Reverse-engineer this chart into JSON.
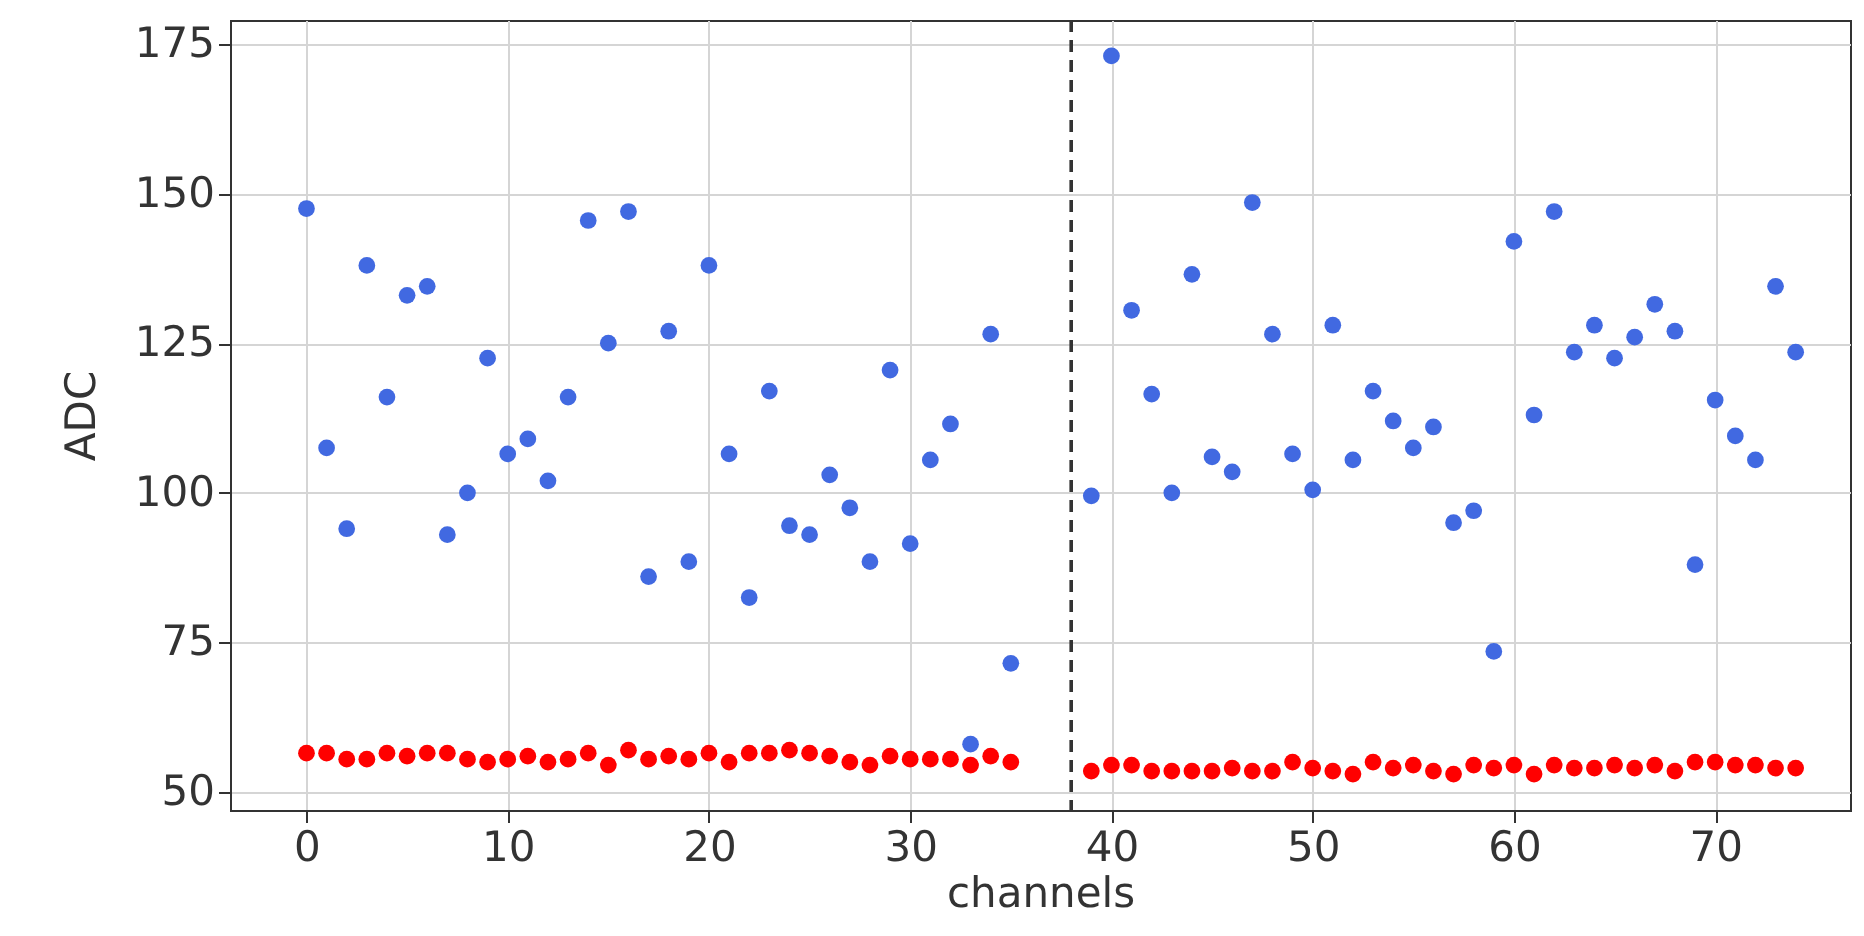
{
  "chart_data": {
    "type": "scatter",
    "xlabel": "channels",
    "ylabel": "ADC",
    "xlim": [
      -3.8,
      76.7
    ],
    "xticks": [
      0,
      10,
      20,
      30,
      40,
      50,
      60,
      70
    ],
    "ylim": [
      47,
      179
    ],
    "yticks": [
      50,
      75,
      100,
      125,
      150,
      175
    ],
    "grid": true,
    "marker": "circle",
    "ref_lines": [
      {
        "axis": "x",
        "value": 38,
        "line_style": "dashed",
        "color": "#333333"
      }
    ],
    "series": [
      {
        "color": "#4169e1",
        "x": [
          0,
          1,
          2,
          3,
          4,
          5,
          6,
          7,
          8,
          9,
          10,
          11,
          12,
          13,
          14,
          15,
          16,
          17,
          18,
          19,
          20,
          21,
          22,
          23,
          24,
          25,
          26,
          27,
          28,
          29,
          30,
          31,
          32,
          33,
          34,
          35,
          39,
          40,
          41,
          42,
          43,
          44,
          45,
          46,
          47,
          48,
          49,
          50,
          51,
          52,
          53,
          54,
          55,
          56,
          57,
          58,
          59,
          60,
          61,
          62,
          63,
          64,
          65,
          66,
          67,
          68,
          69,
          70,
          71,
          72,
          73,
          74
        ],
        "values": [
          147.5,
          107.5,
          94,
          138,
          116,
          133,
          134.5,
          93,
          100,
          122.5,
          106.5,
          109,
          102,
          116,
          145.5,
          125,
          147,
          86,
          127,
          88.5,
          138,
          106.5,
          82.5,
          117,
          94.5,
          93,
          103,
          97.5,
          88.5,
          120.5,
          91.5,
          105.5,
          111.5,
          58,
          126.5,
          71.5,
          99.5,
          173,
          130.5,
          116.5,
          100,
          136.5,
          106,
          103.5,
          148.5,
          126.5,
          106.5,
          100.5,
          128,
          105.5,
          117,
          112,
          107.5,
          111,
          95,
          97,
          73.5,
          142,
          113,
          147,
          123.5,
          128,
          122.5,
          126,
          131.5,
          127,
          88,
          115.5,
          109.5,
          105.5,
          134.5,
          123.5
        ]
      },
      {
        "color": "#ff0000",
        "x": [
          0,
          1,
          2,
          3,
          4,
          5,
          6,
          7,
          8,
          9,
          10,
          11,
          12,
          13,
          14,
          15,
          16,
          17,
          18,
          19,
          20,
          21,
          22,
          23,
          24,
          25,
          26,
          27,
          28,
          29,
          30,
          31,
          32,
          33,
          34,
          35,
          39,
          40,
          41,
          42,
          43,
          44,
          45,
          46,
          47,
          48,
          49,
          50,
          51,
          52,
          53,
          54,
          55,
          56,
          57,
          58,
          59,
          60,
          61,
          62,
          63,
          64,
          65,
          66,
          67,
          68,
          69,
          70,
          71,
          72,
          73,
          74
        ],
        "values": [
          56.5,
          56.5,
          55.5,
          55.5,
          56.5,
          56,
          56.5,
          56.5,
          55.5,
          55,
          55.5,
          56,
          55,
          55.5,
          56.5,
          54.5,
          57,
          55.5,
          56,
          55.5,
          56.5,
          55,
          56.5,
          56.5,
          57,
          56.5,
          56,
          55,
          54.5,
          56,
          55.5,
          55.5,
          55.5,
          54.5,
          56,
          55,
          53.5,
          54.5,
          54.5,
          53.5,
          53.5,
          53.5,
          53.5,
          54,
          53.5,
          53.5,
          55,
          54,
          53.5,
          53,
          55,
          54,
          54.5,
          53.5,
          53,
          54.5,
          54,
          54.5,
          53,
          54.5,
          54,
          54,
          54.5,
          54,
          54.5,
          53.5,
          55,
          55,
          54.5,
          54.5,
          54,
          54
        ]
      }
    ]
  }
}
